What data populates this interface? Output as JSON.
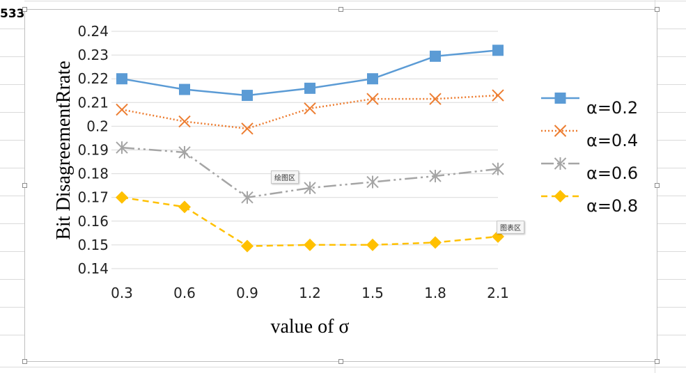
{
  "cell_ref": "533",
  "tooltips": {
    "plot_area": "绘图区",
    "chart_area": "图表区"
  },
  "chart_data": {
    "type": "line",
    "title": "",
    "xlabel": "value of σ",
    "ylabel": "Bit DisagreementRrate",
    "categories": [
      "0.3",
      "0.6",
      "0.9",
      "1.2",
      "1.5",
      "1.8",
      "2.1"
    ],
    "ylim": [
      0.14,
      0.24
    ],
    "yticks": [
      "0.24",
      "0.23",
      "0.22",
      "0.21",
      "0.2",
      "0.19",
      "0.18",
      "0.17",
      "0.16",
      "0.15",
      "0.14"
    ],
    "grid": true,
    "legend_position": "right",
    "series": [
      {
        "name": "α=0.2",
        "values": [
          0.22,
          0.2155,
          0.213,
          0.216,
          0.22,
          0.2295,
          0.232
        ],
        "color": "#5b9bd5",
        "marker": "square",
        "dash": "solid"
      },
      {
        "name": "α=0.4",
        "values": [
          0.207,
          0.202,
          0.199,
          0.2075,
          0.2115,
          0.2115,
          0.213
        ],
        "color": "#ed7d31",
        "marker": "x",
        "dash": "dot"
      },
      {
        "name": "α=0.6",
        "values": [
          0.191,
          0.189,
          0.17,
          0.174,
          0.1765,
          0.179,
          0.182
        ],
        "color": "#a5a5a5",
        "marker": "star",
        "dash": "longdashdotdot"
      },
      {
        "name": "α=0.8",
        "values": [
          0.17,
          0.166,
          0.1495,
          0.15,
          0.15,
          0.151,
          0.1535
        ],
        "color": "#ffc000",
        "marker": "diamond",
        "dash": "dash"
      }
    ]
  }
}
